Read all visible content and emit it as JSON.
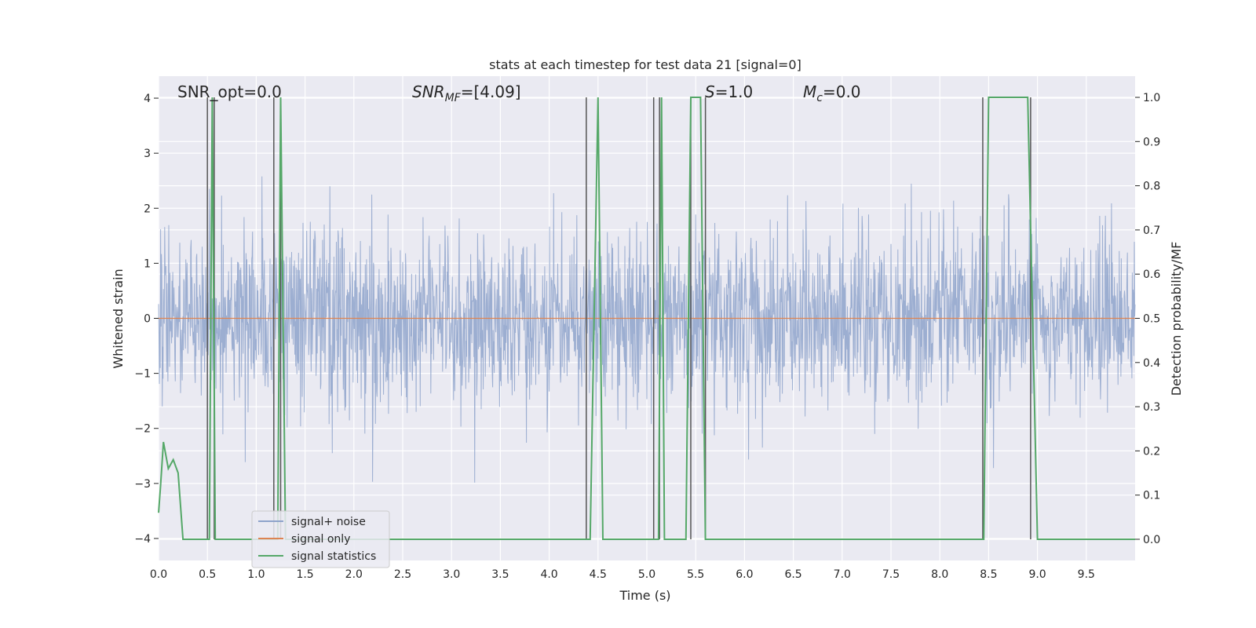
{
  "chart_data": {
    "type": "line",
    "title": "stats at each timestep for test data 21 [signal=0]",
    "xlabel": "Time (s)",
    "ylabel": "Whitened strain",
    "ylabel_right": "Detection probability/MF",
    "xlim": [
      0.0,
      10.0
    ],
    "ylim": [
      -4.4,
      4.4
    ],
    "ylim_right": [
      -0.048,
      1.048
    ],
    "x_ticks": [
      "0.0",
      "0.5",
      "1.0",
      "1.5",
      "2.0",
      "2.5",
      "3.0",
      "3.5",
      "4.0",
      "4.5",
      "5.0",
      "5.5",
      "6.0",
      "6.5",
      "7.0",
      "7.5",
      "8.0",
      "8.5",
      "9.0",
      "9.5"
    ],
    "x_tick_values": [
      0.0,
      0.5,
      1.0,
      1.5,
      2.0,
      2.5,
      3.0,
      3.5,
      4.0,
      4.5,
      5.0,
      5.5,
      6.0,
      6.5,
      7.0,
      7.5,
      8.0,
      8.5,
      9.0,
      9.5
    ],
    "y_ticks": [
      "−4",
      "−3",
      "−2",
      "−1",
      "0",
      "1",
      "2",
      "3",
      "4"
    ],
    "y_tick_values": [
      -4,
      -3,
      -2,
      -1,
      0,
      1,
      2,
      3,
      4
    ],
    "y_right_ticks": [
      "0.0",
      "0.1",
      "0.2",
      "0.3",
      "0.4",
      "0.5",
      "0.6",
      "0.7",
      "0.8",
      "0.9",
      "1.0"
    ],
    "y_right_tick_values": [
      0.0,
      0.1,
      0.2,
      0.3,
      0.4,
      0.5,
      0.6,
      0.7,
      0.8,
      0.9,
      1.0
    ],
    "grid": true,
    "legend_position": "lower-left",
    "annotations": {
      "snr_opt": "SNR_opt=0.0",
      "snr_mf_prefix": "SNR",
      "snr_mf_sub": "MF",
      "snr_mf_value": "=[4.09]",
      "s_prefix": "S",
      "s_value": "=1.0",
      "mc_prefix": "M",
      "mc_sub": "c",
      "mc_value": "=0.0"
    },
    "series": [
      {
        "name": "signal+ noise",
        "color": "#8ea3cb",
        "axis": "left",
        "kind": "noise",
        "amplitude_std": 0.8,
        "peak_abs": 3.6
      },
      {
        "name": "signal only",
        "color": "#dd8452",
        "axis": "left",
        "values_constant": 0.0
      },
      {
        "name": "signal statistics",
        "color": "#55a868",
        "axis": "right",
        "x": [
          0.0,
          0.02,
          0.05,
          0.1,
          0.15,
          0.2,
          0.25,
          0.3,
          0.5,
          0.52,
          0.55,
          0.58,
          0.62,
          0.65,
          1.18,
          1.2,
          1.22,
          1.25,
          1.3,
          1.32,
          4.38,
          4.42,
          4.5,
          4.55,
          5.08,
          5.12,
          5.15,
          5.18,
          5.25,
          5.4,
          5.45,
          5.55,
          5.6,
          5.7,
          8.45,
          8.5,
          8.9,
          9.0,
          9.1,
          10.0
        ],
        "y": [
          0.06,
          0.12,
          0.22,
          0.16,
          0.18,
          0.15,
          0.0,
          0.0,
          0.0,
          0.0,
          1.0,
          0.0,
          0.0,
          0.0,
          0.0,
          0.0,
          0.0,
          1.0,
          0.0,
          0.0,
          0.0,
          0.0,
          1.0,
          0.0,
          0.0,
          0.0,
          1.0,
          0.0,
          0.0,
          0.0,
          1.0,
          1.0,
          0.0,
          0.0,
          0.0,
          1.0,
          1.0,
          0.0,
          0.0,
          0.0
        ]
      }
    ],
    "vertical_markers_x": [
      0.5,
      0.57,
      1.18,
      1.25,
      4.38,
      5.07,
      5.13,
      5.45,
      5.6,
      8.44,
      8.93
    ],
    "marker_color": "#555555"
  }
}
